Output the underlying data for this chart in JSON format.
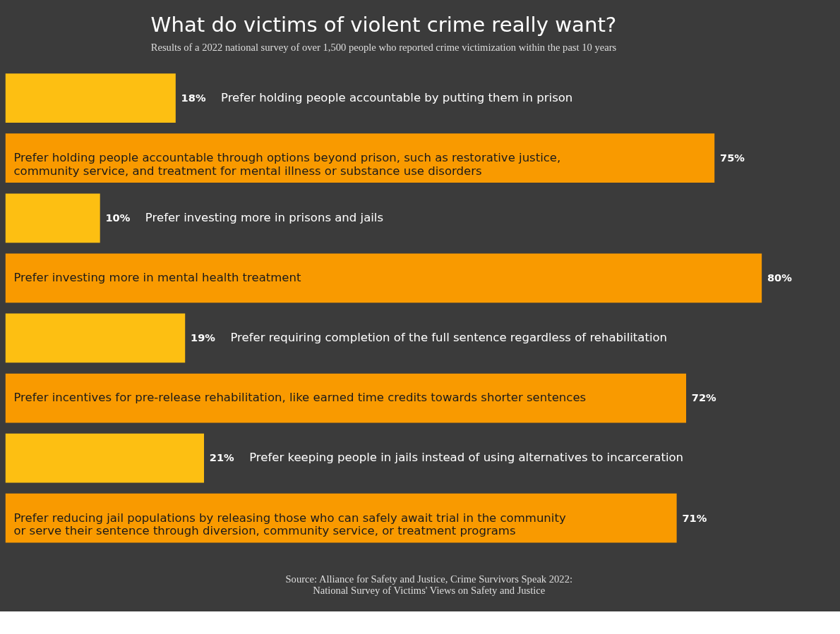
{
  "chart_data": {
    "type": "bar",
    "orientation": "horizontal",
    "title": "What do victims of violent crime really want?",
    "subtitle": "Results of a 2022 national survey of over 1,500 people who reported crime victimization within the past 10 years",
    "categories": [
      "Prefer holding people accountable by putting them in prison",
      "Prefer holding people accountable through options beyond prison, such as restorative justice,\ncommunity service, and treatment for mental illness or substance use disorders",
      "Prefer investing more in prisons and jails",
      "Prefer investing more in mental health treatment",
      "Prefer requiring completion of the full sentence regardless of rehabilitation",
      "Prefer incentives for pre-release rehabilitation, like earned time credits towards shorter sentences",
      "Prefer keeping people in jails instead of using alternatives to incarceration",
      "Prefer reducing jail populations by releasing those who can safely await trial in the community\nor serve their sentence through diversion, community service, or treatment programs"
    ],
    "values": [
      18,
      75,
      10,
      80,
      19,
      72,
      21,
      71
    ],
    "colors": [
      "#fdbf12",
      "#f99a00",
      "#fdbf12",
      "#f99a00",
      "#fdbf12",
      "#f99a00",
      "#fdbf12",
      "#f99a00"
    ],
    "value_labels": [
      "18%",
      "75%",
      "10%",
      "80%",
      "19%",
      "72%",
      "21%",
      "71%"
    ],
    "annotations": [
      "Source: Alliance for Safety and Justice, Crime Survivors Speak 2022:\nNational Survey of Victims' Views on Safety and Justice"
    ]
  }
}
